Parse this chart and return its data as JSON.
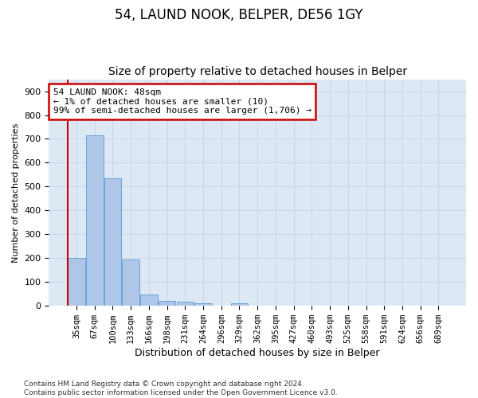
{
  "title": "54, LAUND NOOK, BELPER, DE56 1GY",
  "subtitle": "Size of property relative to detached houses in Belper",
  "xlabel": "Distribution of detached houses by size in Belper",
  "ylabel": "Number of detached properties",
  "categories": [
    "35sqm",
    "67sqm",
    "100sqm",
    "133sqm",
    "166sqm",
    "198sqm",
    "231sqm",
    "264sqm",
    "296sqm",
    "329sqm",
    "362sqm",
    "395sqm",
    "427sqm",
    "460sqm",
    "493sqm",
    "525sqm",
    "558sqm",
    "591sqm",
    "624sqm",
    "656sqm",
    "689sqm"
  ],
  "values": [
    200,
    715,
    535,
    193,
    48,
    22,
    16,
    12,
    0,
    10,
    0,
    0,
    0,
    0,
    0,
    0,
    0,
    0,
    0,
    0,
    0
  ],
  "bar_color": "#aec6e8",
  "bar_edge_color": "#5b9bd5",
  "annotation_box_text": "54 LAUND NOOK: 48sqm\n← 1% of detached houses are smaller (10)\n99% of semi-detached houses are larger (1,706) →",
  "annotation_box_color": "#ffffff",
  "annotation_box_edge_color": "#cc0000",
  "annotation_line_color": "#cc0000",
  "ylim": [
    0,
    950
  ],
  "yticks": [
    0,
    100,
    200,
    300,
    400,
    500,
    600,
    700,
    800,
    900
  ],
  "footer": "Contains HM Land Registry data © Crown copyright and database right 2024.\nContains public sector information licensed under the Open Government Licence v3.0.",
  "bg_color": "#ffffff",
  "grid_color": "#c8d4e8",
  "title_fontsize": 12,
  "subtitle_fontsize": 10,
  "ylabel_fontsize": 8,
  "xlabel_fontsize": 9,
  "tick_fontsize": 7.5,
  "footer_fontsize": 6.5
}
